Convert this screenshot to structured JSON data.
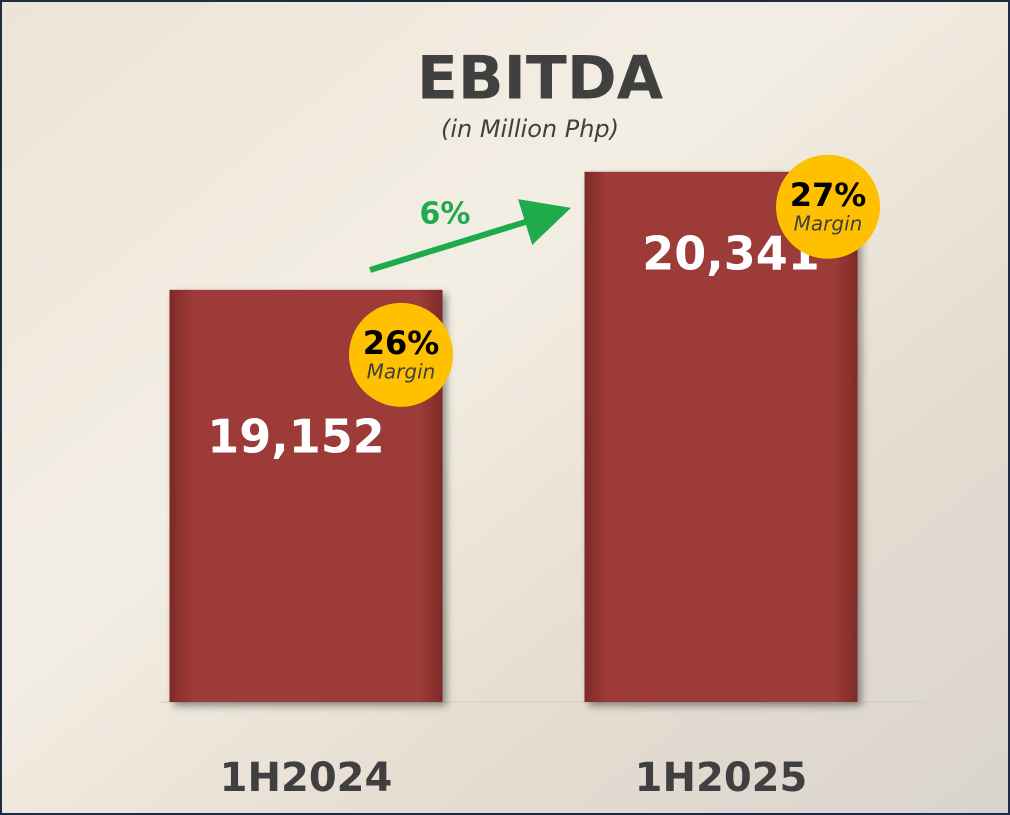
{
  "chart_data": {
    "type": "bar",
    "title": "EBITDA",
    "subtitle": "(in Million Php)",
    "categories": [
      "1H2024",
      "1H2025"
    ],
    "values": [
      19152,
      20341
    ],
    "value_labels": [
      "19,152",
      "20,341"
    ],
    "color": "#9c3a37",
    "ylim": [
      15000,
      20500
    ],
    "margins": [
      26,
      27
    ],
    "margin_labels": [
      "26%",
      "27%"
    ],
    "margin_text": "Margin",
    "growth": 6,
    "growth_label": "6%"
  }
}
